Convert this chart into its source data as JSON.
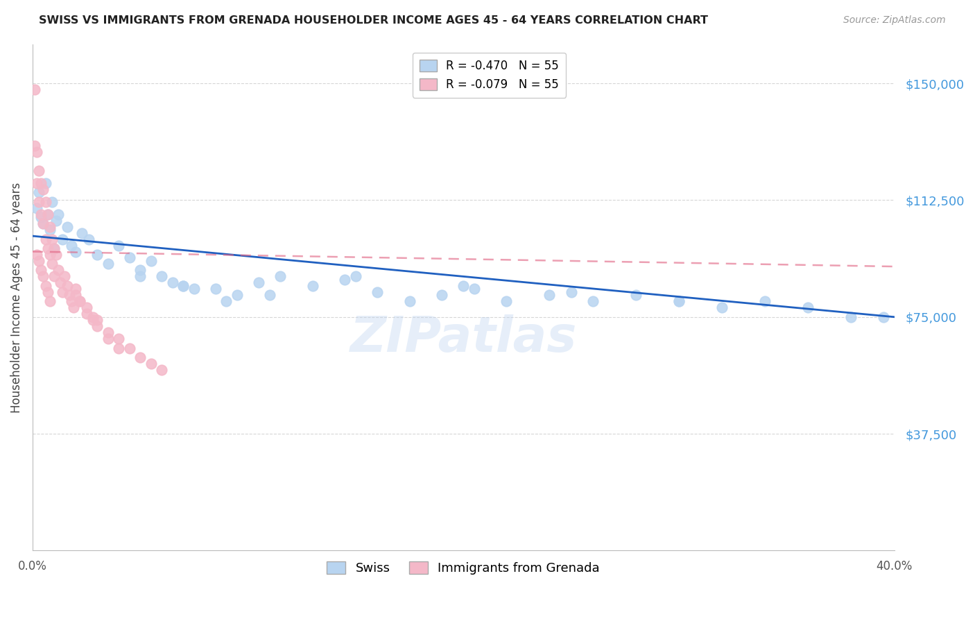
{
  "title": "SWISS VS IMMIGRANTS FROM GRENADA HOUSEHOLDER INCOME AGES 45 - 64 YEARS CORRELATION CHART",
  "source": "Source: ZipAtlas.com",
  "ylabel": "Householder Income Ages 45 - 64 years",
  "y_tick_values": [
    37500,
    75000,
    112500,
    150000
  ],
  "xlim": [
    0.0,
    0.4
  ],
  "ylim": [
    0,
    162500
  ],
  "swiss_color": "#b8d4f0",
  "grenada_color": "#f4b8c8",
  "swiss_line_color": "#2060c0",
  "grenada_line_color": "#e06080",
  "grid_color": "#cccccc",
  "background_color": "#ffffff",
  "title_color": "#222222",
  "ylabel_color": "#444444",
  "ytick_color": "#4499dd",
  "swiss_intercept": 101000,
  "swiss_slope": -65000,
  "grenada_intercept": 96000,
  "grenada_slope": -12000,
  "swiss_x": [
    0.002,
    0.003,
    0.004,
    0.005,
    0.006,
    0.007,
    0.008,
    0.009,
    0.01,
    0.011,
    0.012,
    0.014,
    0.016,
    0.018,
    0.02,
    0.023,
    0.026,
    0.03,
    0.035,
    0.04,
    0.045,
    0.05,
    0.055,
    0.06,
    0.065,
    0.07,
    0.075,
    0.085,
    0.095,
    0.105,
    0.115,
    0.13,
    0.145,
    0.16,
    0.175,
    0.19,
    0.205,
    0.22,
    0.24,
    0.26,
    0.28,
    0.3,
    0.32,
    0.34,
    0.36,
    0.38,
    0.395,
    0.05,
    0.07,
    0.09,
    0.11,
    0.15,
    0.2,
    0.25,
    0.3
  ],
  "swiss_y": [
    110000,
    115000,
    107000,
    105000,
    118000,
    108000,
    103000,
    112000,
    97000,
    106000,
    108000,
    100000,
    104000,
    98000,
    96000,
    102000,
    100000,
    95000,
    92000,
    98000,
    94000,
    90000,
    93000,
    88000,
    86000,
    85000,
    84000,
    84000,
    82000,
    86000,
    88000,
    85000,
    87000,
    83000,
    80000,
    82000,
    84000,
    80000,
    82000,
    80000,
    82000,
    80000,
    78000,
    80000,
    78000,
    75000,
    75000,
    88000,
    85000,
    80000,
    82000,
    88000,
    85000,
    83000,
    80000
  ],
  "grenada_x": [
    0.001,
    0.001,
    0.002,
    0.002,
    0.003,
    0.003,
    0.004,
    0.004,
    0.005,
    0.005,
    0.006,
    0.006,
    0.007,
    0.007,
    0.008,
    0.008,
    0.009,
    0.009,
    0.01,
    0.01,
    0.011,
    0.012,
    0.013,
    0.014,
    0.015,
    0.016,
    0.017,
    0.018,
    0.019,
    0.02,
    0.022,
    0.025,
    0.028,
    0.03,
    0.035,
    0.04,
    0.045,
    0.05,
    0.055,
    0.06,
    0.002,
    0.003,
    0.004,
    0.005,
    0.006,
    0.007,
    0.008,
    0.03,
    0.035,
    0.04,
    0.02,
    0.022,
    0.025,
    0.028
  ],
  "grenada_y": [
    148000,
    130000,
    128000,
    118000,
    122000,
    112000,
    108000,
    118000,
    116000,
    105000,
    112000,
    100000,
    108000,
    97000,
    104000,
    95000,
    100000,
    92000,
    97000,
    88000,
    95000,
    90000,
    86000,
    83000,
    88000,
    85000,
    82000,
    80000,
    78000,
    84000,
    80000,
    78000,
    75000,
    74000,
    70000,
    68000,
    65000,
    62000,
    60000,
    58000,
    95000,
    93000,
    90000,
    88000,
    85000,
    83000,
    80000,
    72000,
    68000,
    65000,
    82000,
    80000,
    76000,
    74000
  ]
}
